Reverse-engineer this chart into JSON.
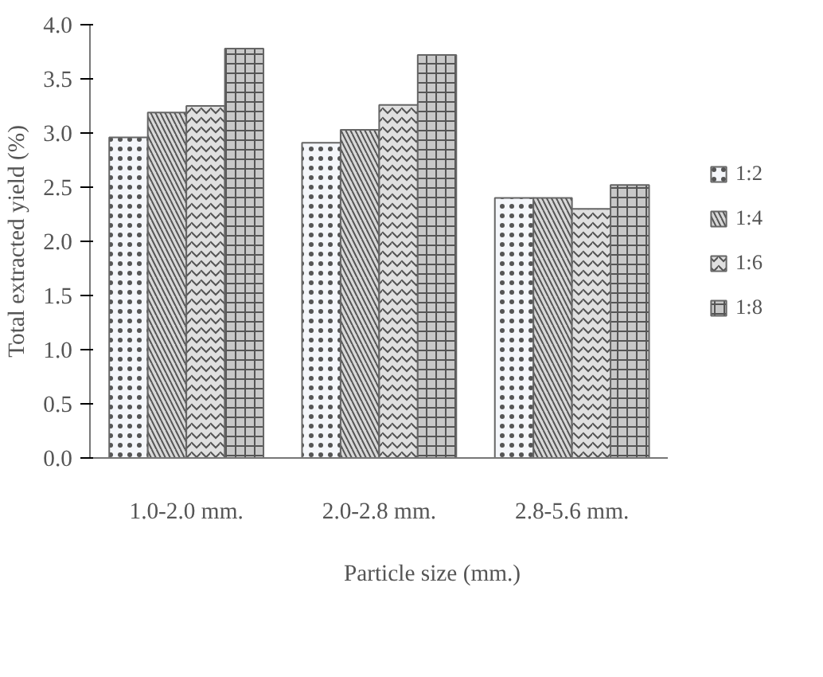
{
  "chart_data": {
    "type": "bar",
    "xlabel": "Particle size (mm.)",
    "ylabel": "Total extracted yield (%)",
    "categories": [
      "1.0-2.0 mm.",
      "2.0-2.8 mm.",
      "2.8-5.6 mm."
    ],
    "series": [
      {
        "name": "1:2",
        "color": "#f4f6fa",
        "values": [
          2.96,
          2.91,
          2.4
        ]
      },
      {
        "name": "1:4",
        "color": "#d8d8d8",
        "values": [
          3.19,
          3.03,
          2.4
        ]
      },
      {
        "name": "1:6",
        "color": "#e0e0e0",
        "values": [
          3.25,
          3.26,
          2.3
        ]
      },
      {
        "name": "1:8",
        "color": "#c8c8c8",
        "values": [
          3.78,
          3.72,
          2.52
        ]
      }
    ],
    "ylim": [
      0,
      4
    ],
    "yticks": [
      {
        "value": 0,
        "label": "0.0"
      },
      {
        "value": 0.5,
        "label": "0.5"
      },
      {
        "value": 1,
        "label": "1.0"
      },
      {
        "value": 1.5,
        "label": "1.5"
      },
      {
        "value": 2,
        "label": "2.0"
      },
      {
        "value": 2.5,
        "label": "2.5"
      },
      {
        "value": 3,
        "label": "3.0"
      },
      {
        "value": 3.5,
        "label": "3.5"
      },
      {
        "value": 4,
        "label": "4.0"
      }
    ],
    "grid": false,
    "legend": "right"
  }
}
